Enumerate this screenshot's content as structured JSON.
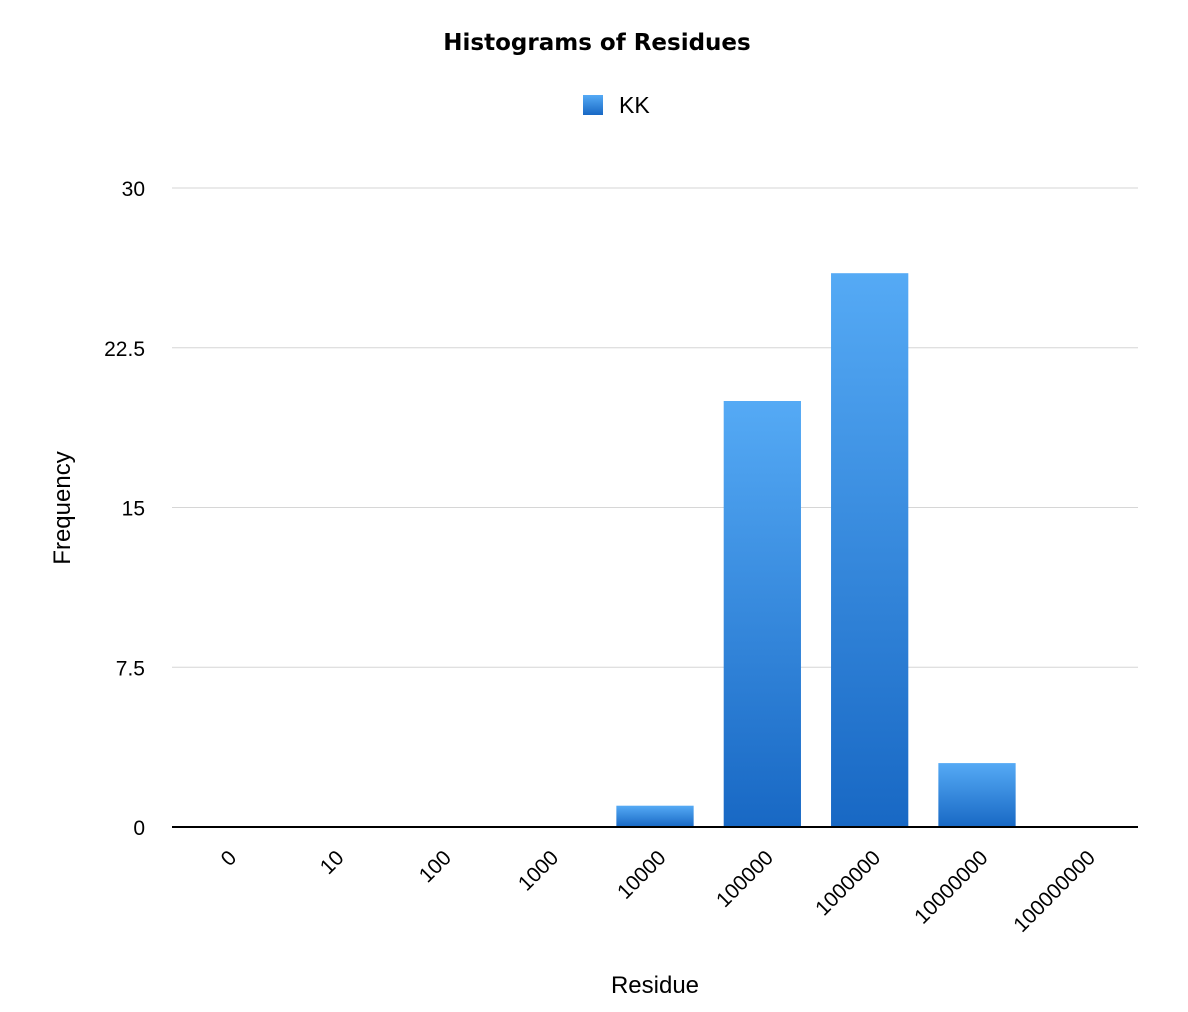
{
  "chart_data": {
    "type": "bar",
    "title": "Histograms of Residues",
    "xlabel": "Residue",
    "ylabel": "Frequency",
    "categories": [
      "0",
      "10",
      "100",
      "1000",
      "10000",
      "100000",
      "1000000",
      "10000000",
      "100000000"
    ],
    "series": [
      {
        "name": "KK",
        "values": [
          0,
          0,
          0,
          0,
          1,
          20,
          26,
          3,
          0
        ],
        "color": "#2b88e0"
      }
    ],
    "ylim": [
      0,
      30
    ],
    "yticks": [
      "0",
      "7.5",
      "15",
      "22.5",
      "30"
    ],
    "grid": true,
    "legend_position": "top-center",
    "colors": {
      "bar_top": "#55aaf5",
      "bar_bottom": "#1868c4"
    }
  }
}
